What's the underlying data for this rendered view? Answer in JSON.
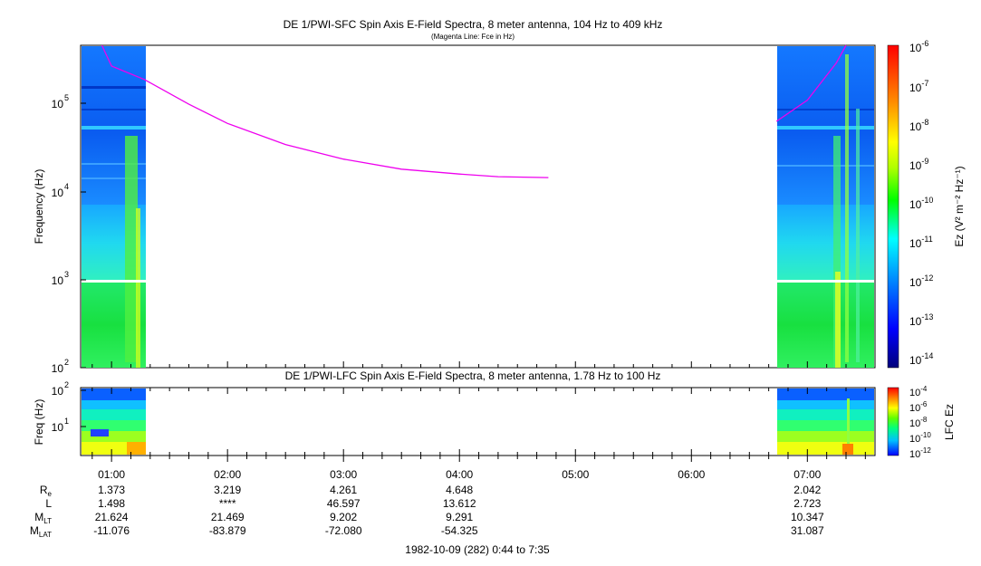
{
  "top_panel": {
    "title": "DE 1/PWI-SFC  Spin Axis E-Field Spectra, 8 meter antenna, 104 Hz to 409 kHz",
    "subtitle": "(Magenta Line: Fce in Hz)",
    "ylabel": "Frequency (Hz)",
    "yticks": [
      {
        "base": "10",
        "exp": "5"
      },
      {
        "base": "10",
        "exp": "4"
      },
      {
        "base": "10",
        "exp": "3"
      },
      {
        "base": "10",
        "exp": "2"
      }
    ],
    "colorbar_label": "Ez (V² m⁻² Hz⁻¹)",
    "colorbar_ticks": [
      {
        "base": "10",
        "exp": "-6"
      },
      {
        "base": "10",
        "exp": "-7"
      },
      {
        "base": "10",
        "exp": "-8"
      },
      {
        "base": "10",
        "exp": "-9"
      },
      {
        "base": "10",
        "exp": "-10"
      },
      {
        "base": "10",
        "exp": "-11"
      },
      {
        "base": "10",
        "exp": "-12"
      },
      {
        "base": "10",
        "exp": "-13"
      },
      {
        "base": "10",
        "exp": "-14"
      }
    ]
  },
  "bottom_panel": {
    "title": "DE 1/PWI-LFC  Spin Axis E-Field Spectra, 8 meter antenna, 1.78 Hz to 100 Hz",
    "ylabel": "Freq (Hz)",
    "yticks": [
      {
        "base": "10",
        "exp": "2"
      },
      {
        "base": "10",
        "exp": "1"
      }
    ],
    "colorbar_label": "LFC Ez",
    "colorbar_ticks": [
      {
        "base": "10",
        "exp": "-4"
      },
      {
        "base": "10",
        "exp": "-6"
      },
      {
        "base": "10",
        "exp": "-8"
      },
      {
        "base": "10",
        "exp": "-10"
      },
      {
        "base": "10",
        "exp": "-12"
      }
    ]
  },
  "ephemeris": {
    "labels": [
      {
        "main": "R",
        "sub": "e"
      },
      {
        "main": "L",
        "sub": ""
      },
      {
        "main": "M",
        "sub": "LT"
      },
      {
        "main": "M",
        "sub": "LAT"
      }
    ],
    "columns": [
      {
        "time": "01:00",
        "re": "1.373",
        "l": "1.498",
        "mlt": "21.624",
        "mlat": "-11.076"
      },
      {
        "time": "02:00",
        "re": "3.219",
        "l": "****",
        "mlt": "21.469",
        "mlat": "-83.879"
      },
      {
        "time": "03:00",
        "re": "4.261",
        "l": "46.597",
        "mlt": "9.202",
        "mlat": "-72.080"
      },
      {
        "time": "04:00",
        "re": "4.648",
        "l": "13.612",
        "mlt": "9.291",
        "mlat": "-54.325"
      },
      {
        "time": "05:00",
        "re": "",
        "l": "",
        "mlt": "",
        "mlat": ""
      },
      {
        "time": "06:00",
        "re": "",
        "l": "",
        "mlt": "",
        "mlat": ""
      },
      {
        "time": "07:00",
        "re": "2.042",
        "l": "2.723",
        "mlt": "10.347",
        "mlat": "31.087"
      }
    ]
  },
  "footer_date": "1982-10-09 (282) 0:44 to 7:35",
  "colors": {
    "fce_line": "#ee00ee",
    "gap_line": "#ffffff"
  },
  "chart_data": {
    "type": "heatmap",
    "x_range": [
      "00:44",
      "07:35"
    ],
    "data_coverage": [
      [
        "00:44",
        "01:17"
      ],
      [
        "06:44",
        "07:35"
      ]
    ],
    "fce_line": {
      "name": "Fce in Hz",
      "times": [
        "00:55",
        "01:00",
        "01:17",
        "01:40",
        "02:00",
        "02:30",
        "03:00",
        "03:30",
        "04:00",
        "04:20",
        "04:46"
      ],
      "values_hz": [
        600000,
        240000,
        170000,
        90000,
        55000,
        32000,
        22000,
        17000,
        15000,
        14000,
        13700
      ]
    },
    "fce_line_end": {
      "times": [
        "06:44",
        "07:00",
        "07:15",
        "07:20"
      ],
      "values_hz": [
        58000,
        100000,
        260000,
        409000
      ]
    },
    "top_freq_range_hz": [
      104,
      409000
    ],
    "bottom_freq_range_hz": [
      1.78,
      100
    ],
    "colorbar_range": [
      "1e-14",
      "1e-6"
    ],
    "lfc_colorbar_range": [
      "1e-12",
      "1e-4"
    ]
  }
}
